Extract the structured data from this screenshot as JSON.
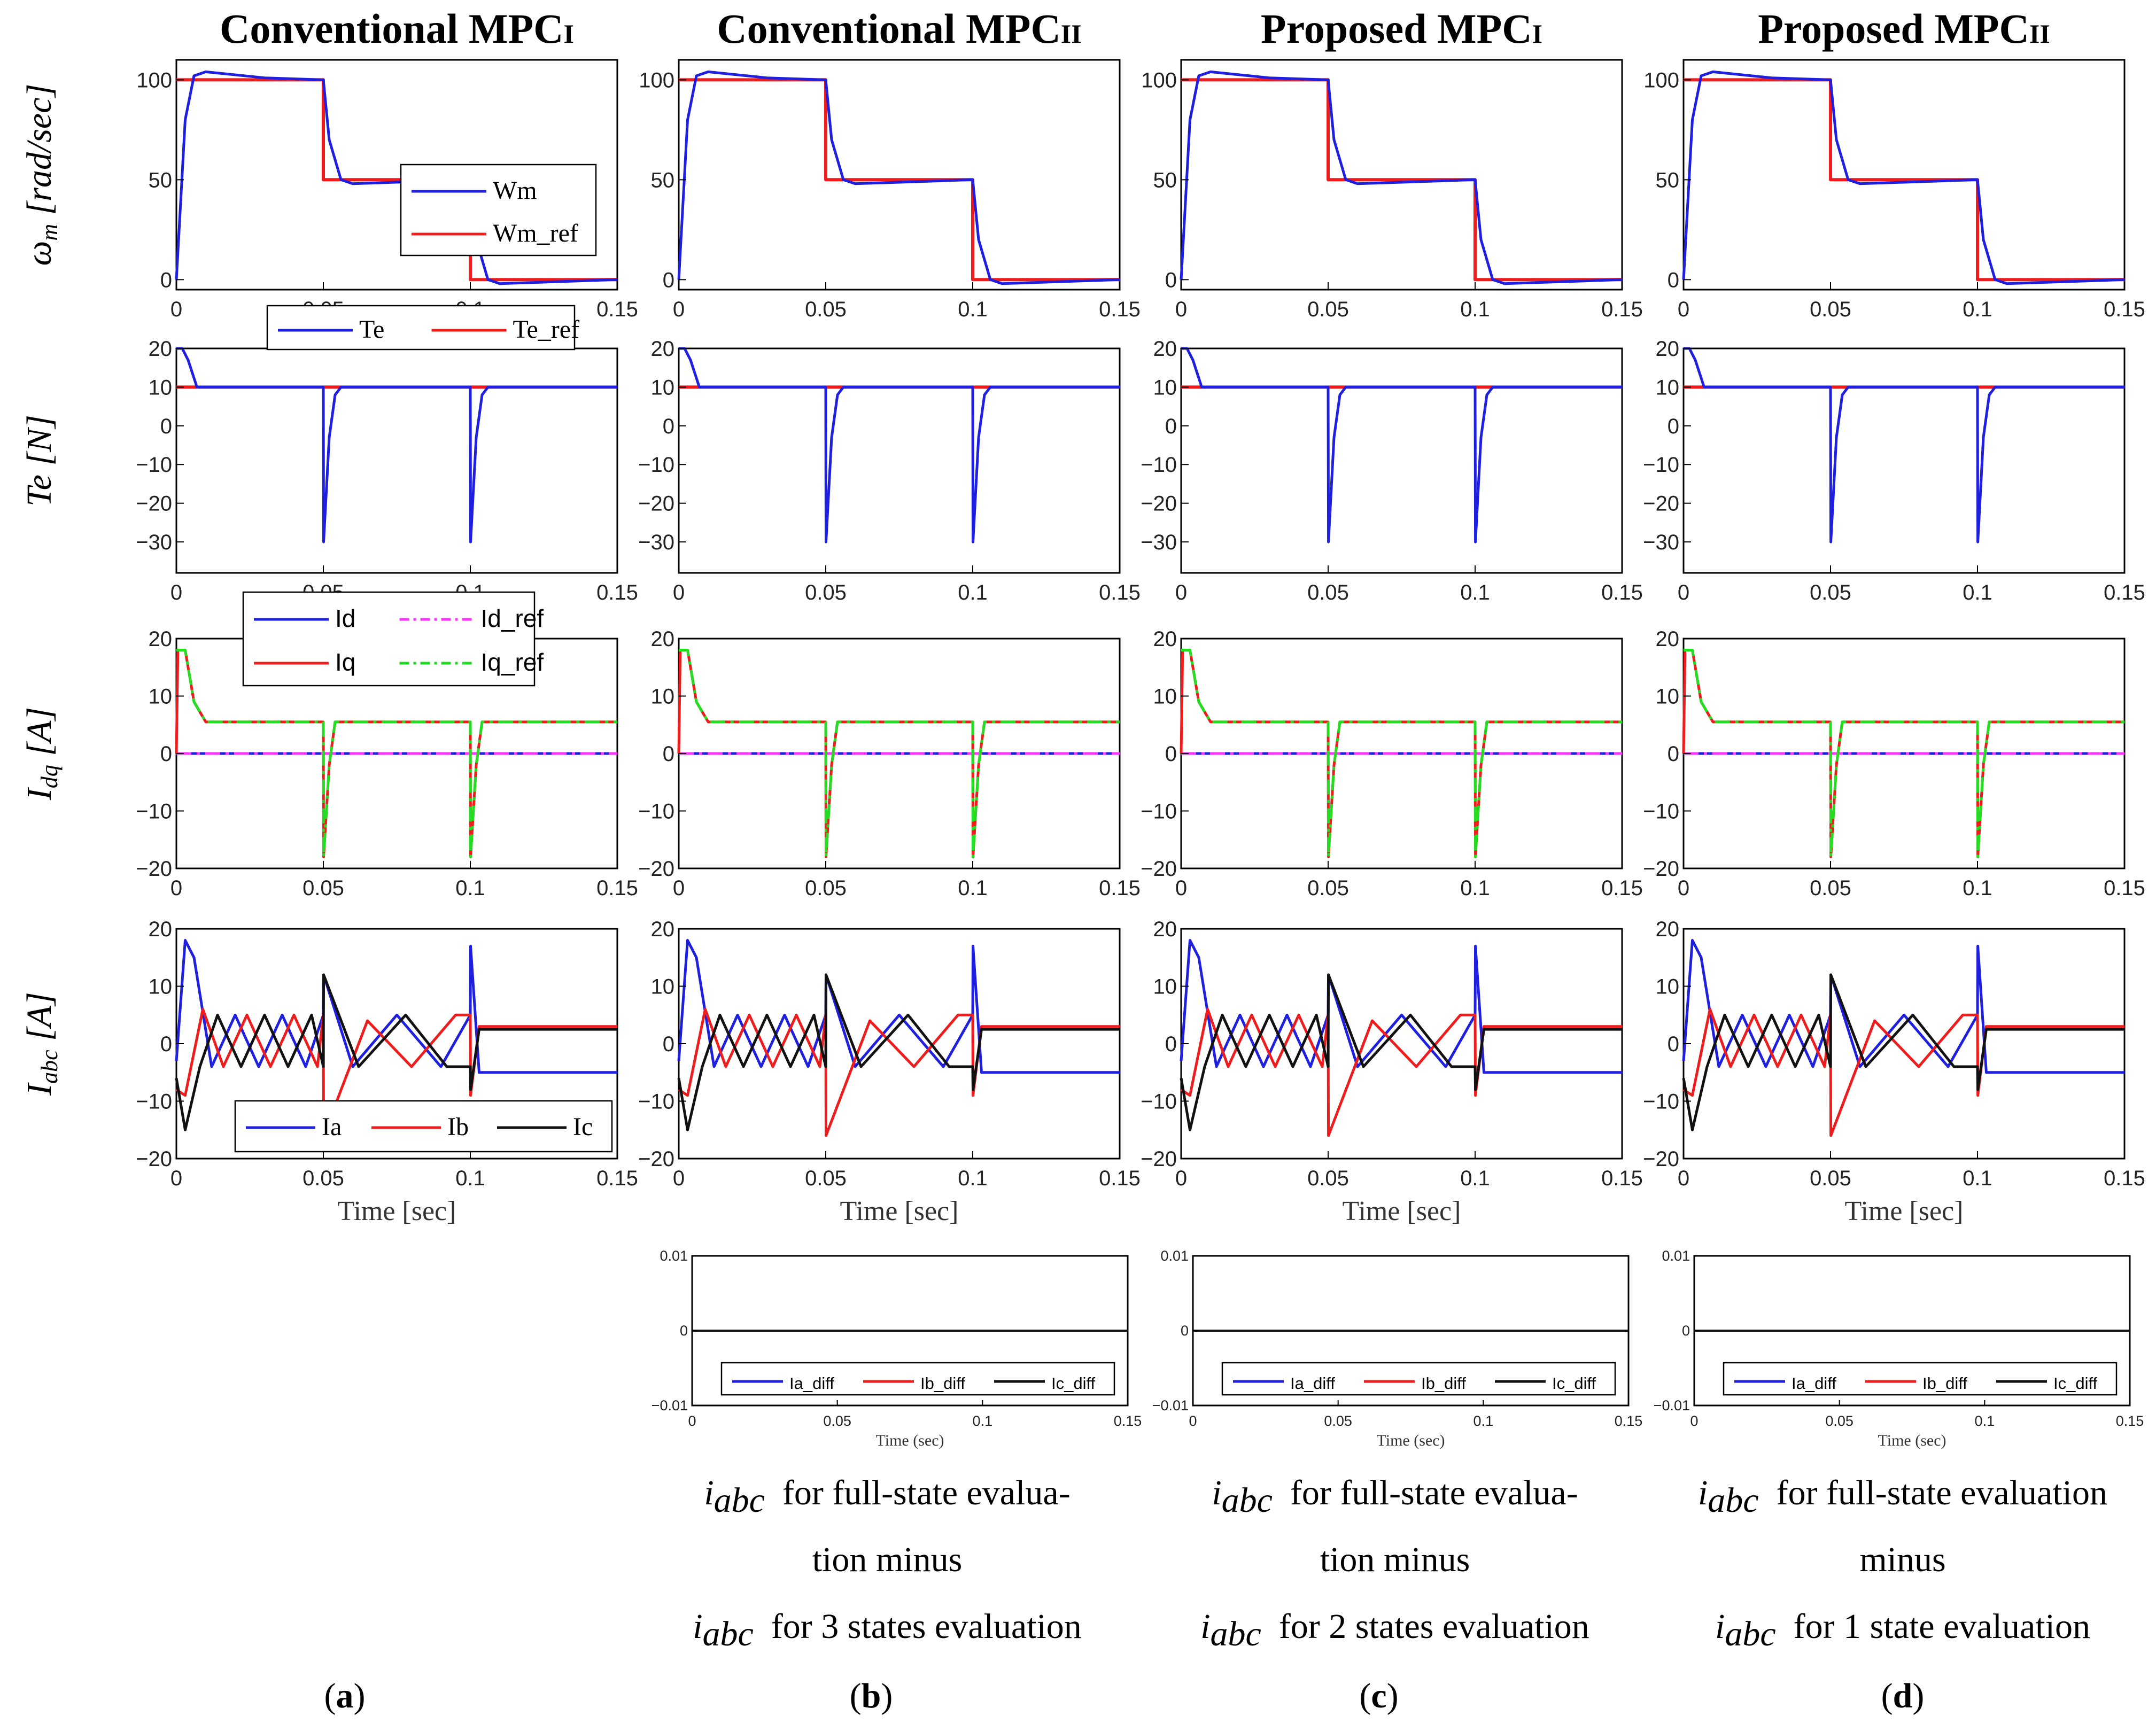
{
  "columns": [
    {
      "title": "Conventional MPC",
      "subscript": "I",
      "letter": "a"
    },
    {
      "title": "Conventional MPC",
      "subscript": "II",
      "letter": "b"
    },
    {
      "title": "Proposed MPC",
      "subscript": "I",
      "letter": "c"
    },
    {
      "title": "Proposed MPC",
      "subscript": "II",
      "letter": "d"
    }
  ],
  "row_labels": {
    "speed": {
      "main": "ω",
      "sub": "m",
      "unit": " [rad/sec]"
    },
    "torque": {
      "main": "Te",
      "unit": " [N]"
    },
    "idq": {
      "main": "I",
      "sub": "dq",
      "unit": " [A]"
    },
    "iabc": {
      "main": "I",
      "sub": "abc",
      "unit": " [A]"
    }
  },
  "xlabel": "Time [sec]",
  "diff_xlabel": "Time (sec)",
  "captions": [
    null,
    {
      "l1_math": "i",
      "l1_sub": "abc",
      "l1": "for full-state evalua-",
      "l2": "tion minus",
      "l3_math": "i",
      "l3_sub": "abc",
      "l3": "for 3 states evaluation"
    },
    {
      "l1_math": "i",
      "l1_sub": "abc",
      "l1": "for full-state evalua-",
      "l2": "tion minus",
      "l3_math": "i",
      "l3_sub": "abc",
      "l3": "for 2 states evaluation"
    },
    {
      "l1_math": "i",
      "l1_sub": "abc",
      "l1": "for full-state evaluation",
      "l2": "minus",
      "l3_math": "i",
      "l3_sub": "abc",
      "l3": "for 1 state evaluation"
    }
  ],
  "colors": {
    "blue": "#1f1fe0",
    "red": "#ee1c1c",
    "black": "#111111",
    "magenta": "#ff33ff",
    "green": "#22dd22"
  },
  "chart_data": [
    {
      "type": "line",
      "name": "speed",
      "xlim": [
        0,
        0.15
      ],
      "ylim": [
        -5,
        110
      ],
      "xticks": [
        "0",
        "0.05",
        "0.1",
        "0.15"
      ],
      "yticks": [
        "0",
        "50",
        "100"
      ],
      "ytick_values": [
        0,
        50,
        100
      ],
      "legend": [
        "Wm",
        "Wm_ref"
      ],
      "series": [
        {
          "name": "Wm",
          "x": [
            0,
            0.003,
            0.006,
            0.01,
            0.03,
            0.05,
            0.052,
            0.056,
            0.06,
            0.1,
            0.102,
            0.106,
            0.11,
            0.15
          ],
          "y": [
            0,
            80,
            102,
            104,
            101,
            100,
            70,
            50,
            48,
            50,
            20,
            0,
            -2,
            0
          ]
        },
        {
          "name": "Wm_ref",
          "x": [
            0,
            0.05,
            0.05,
            0.1,
            0.1,
            0.15
          ],
          "y": [
            100,
            100,
            50,
            50,
            0,
            0
          ]
        }
      ]
    },
    {
      "type": "line",
      "name": "torque",
      "xlim": [
        0,
        0.15
      ],
      "ylim": [
        -38,
        20
      ],
      "xticks": [
        "0",
        "0.05",
        "0.1",
        "0.15"
      ],
      "yticks": [
        "-30",
        "-20",
        "-10",
        "0",
        "10",
        "20"
      ],
      "ytick_values": [
        -30,
        -20,
        -10,
        0,
        10,
        20
      ],
      "legend": [
        "Te",
        "Te_ref"
      ],
      "series": [
        {
          "name": "Te",
          "x": [
            0,
            0.002,
            0.004,
            0.007,
            0.05,
            0.0501,
            0.052,
            0.054,
            0.056,
            0.1,
            0.1001,
            0.102,
            0.104,
            0.106,
            0.15
          ],
          "y": [
            20,
            20,
            17,
            10,
            10,
            -30,
            -3,
            8,
            10,
            10,
            -30,
            -3,
            8,
            10,
            10
          ]
        },
        {
          "name": "Te_ref",
          "x": [
            0,
            0.15
          ],
          "y": [
            10,
            10
          ]
        }
      ]
    },
    {
      "type": "line",
      "name": "idq",
      "xlim": [
        0,
        0.15
      ],
      "ylim": [
        -20,
        20
      ],
      "xticks": [
        "0",
        "0.05",
        "0.1",
        "0.15"
      ],
      "yticks": [
        "-20",
        "-10",
        "0",
        "10",
        "20"
      ],
      "ytick_values": [
        -20,
        -10,
        0,
        10,
        20
      ],
      "legend": [
        "Id",
        "Id_ref",
        "Iq",
        "Iq_ref"
      ],
      "series": [
        {
          "name": "Id",
          "x": [
            0,
            0.15
          ],
          "y": [
            0,
            0
          ]
        },
        {
          "name": "Id_ref",
          "x": [
            0,
            0.15
          ],
          "y": [
            0,
            0
          ]
        },
        {
          "name": "Iq",
          "x": [
            0,
            0.0005,
            0.003,
            0.006,
            0.01,
            0.05,
            0.0501,
            0.052,
            0.054,
            0.1,
            0.1001,
            0.102,
            0.104,
            0.15
          ],
          "y": [
            0,
            18,
            18,
            9,
            5.5,
            5.5,
            -18,
            -2,
            5.5,
            5.5,
            -18,
            -2,
            5.5,
            5.5
          ]
        },
        {
          "name": "Iq_ref",
          "x": [
            0,
            0.003,
            0.006,
            0.01,
            0.05,
            0.0501,
            0.052,
            0.054,
            0.1,
            0.1001,
            0.102,
            0.104,
            0.15
          ],
          "y": [
            18,
            18,
            9,
            5.5,
            5.5,
            -18,
            -2,
            5.5,
            5.5,
            -18,
            -2,
            5.5,
            5.5
          ]
        }
      ]
    },
    {
      "type": "line",
      "name": "iabc",
      "xlim": [
        0,
        0.15
      ],
      "ylim": [
        -20,
        20
      ],
      "xticks": [
        "0",
        "0.05",
        "0.1",
        "0.15"
      ],
      "yticks": [
        "-20",
        "-10",
        "0",
        "10",
        "20"
      ],
      "ytick_values": [
        -20,
        -10,
        0,
        10,
        20
      ],
      "legend": [
        "Ia",
        "Ib",
        "Ic"
      ],
      "series": [
        {
          "name": "Ia",
          "x": [
            0,
            0.003,
            0.006,
            0.012,
            0.02,
            0.028,
            0.036,
            0.044,
            0.05,
            0.0501,
            0.06,
            0.075,
            0.09,
            0.1,
            0.1001,
            0.103,
            0.15
          ],
          "y": [
            -3,
            18,
            15,
            -4,
            5,
            -4,
            5,
            -4,
            5,
            12,
            -4,
            5,
            -4,
            5,
            17,
            -5,
            -5
          ]
        },
        {
          "name": "Ib",
          "x": [
            0,
            0.003,
            0.009,
            0.016,
            0.024,
            0.032,
            0.04,
            0.048,
            0.05,
            0.0501,
            0.065,
            0.08,
            0.095,
            0.1,
            0.1001,
            0.103,
            0.15
          ],
          "y": [
            -8,
            -9,
            6,
            -4,
            5,
            -4,
            5,
            -4,
            5,
            -16,
            4,
            -4,
            5,
            5,
            -9,
            3,
            3
          ]
        },
        {
          "name": "Ic",
          "x": [
            0,
            0.003,
            0.008,
            0.014,
            0.022,
            0.03,
            0.038,
            0.046,
            0.05,
            0.0501,
            0.062,
            0.078,
            0.092,
            0.1,
            0.1001,
            0.103,
            0.15
          ],
          "y": [
            -6,
            -15,
            -4,
            5,
            -4,
            5,
            -4,
            5,
            -4,
            12,
            -4,
            5,
            -4,
            -4,
            -8,
            2.5,
            2.5
          ]
        }
      ]
    },
    {
      "type": "line",
      "name": "iabc_diff",
      "xlim": [
        0,
        0.15
      ],
      "ylim": [
        -0.01,
        0.01
      ],
      "xticks": [
        "0",
        "0.05",
        "0.1",
        "0.15"
      ],
      "yticks": [
        "-0.01",
        "0",
        "0.01"
      ],
      "ytick_values": [
        -0.01,
        0,
        0.01
      ],
      "legend": [
        "Ia_diff",
        "Ib_diff",
        "Ic_diff"
      ],
      "series": [
        {
          "name": "Ia_diff",
          "x": [
            0,
            0.15
          ],
          "y": [
            0,
            0
          ]
        },
        {
          "name": "Ib_diff",
          "x": [
            0,
            0.15
          ],
          "y": [
            0,
            0
          ]
        },
        {
          "name": "Ic_diff",
          "x": [
            0,
            0.15
          ],
          "y": [
            0,
            0
          ]
        }
      ]
    }
  ]
}
